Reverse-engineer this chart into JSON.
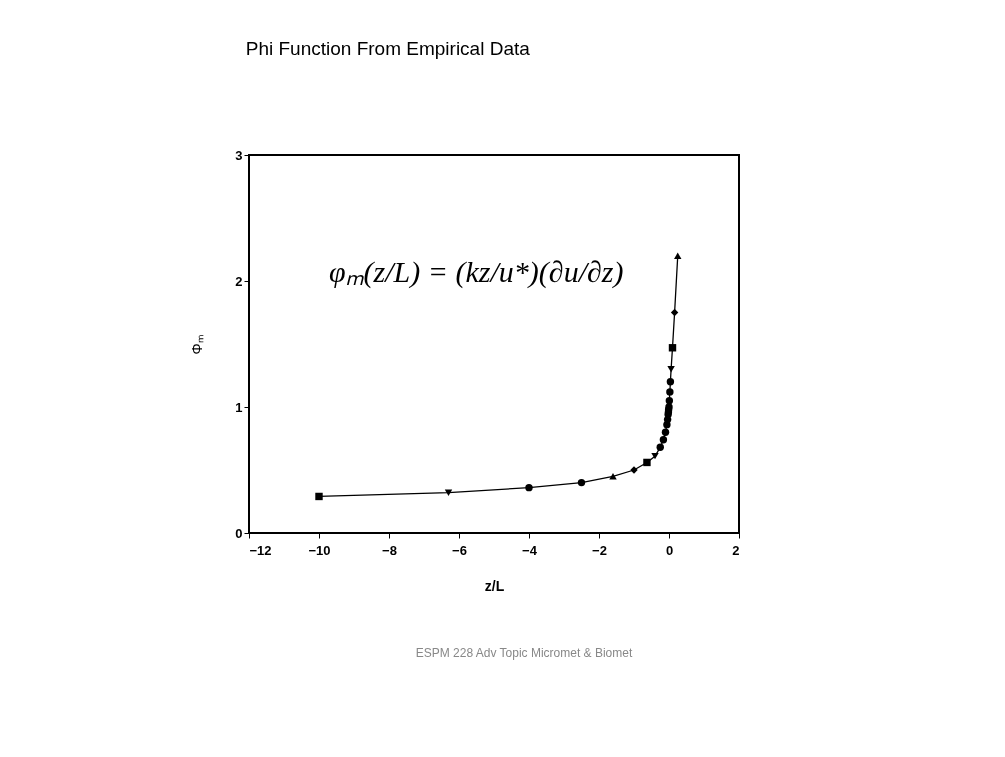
{
  "chart_data": {
    "type": "line",
    "title": "Phi Function From Empirical Data",
    "xlabel": "z/L",
    "ylabel": "Φₘ",
    "xlim": [
      -12,
      2
    ],
    "xticks": [
      -12,
      -10,
      -8,
      -6,
      -4,
      -2,
      0,
      2
    ],
    "ylim": [
      0,
      3
    ],
    "yticks": [
      0,
      1,
      2,
      3
    ],
    "grid": false,
    "annotations": [
      "φₘ(z/L) = (kz/u*)(∂u/∂z)",
      "ESPM 228 Adv Topic Micromet & Biomet"
    ],
    "series": [
      {
        "type": "line",
        "color": "#000000",
        "marker": "none",
        "line_style": "solid",
        "x": [
          -10,
          -6.3,
          -4,
          -2.5,
          -1.6,
          -1.0,
          -0.63,
          -0.4,
          -0.25,
          -0.16,
          -0.1,
          -0.06,
          -0.04,
          -0.025,
          -0.016,
          -0.01,
          0,
          0.01,
          0.025,
          0.04,
          0.06,
          0.1,
          0.16,
          0.25
        ],
        "values": [
          0.29,
          0.32,
          0.36,
          0.4,
          0.45,
          0.5,
          0.56,
          0.61,
          0.68,
          0.74,
          0.8,
          0.86,
          0.9,
          0.94,
          0.96,
          0.98,
          1.0,
          1.05,
          1.12,
          1.2,
          1.3,
          1.47,
          1.75,
          2.2
        ]
      },
      {
        "type": "scatter",
        "color": "#000000",
        "marker": "square",
        "x": [
          -10,
          -0.63,
          0.1
        ],
        "values": [
          0.29,
          0.56,
          1.47
        ]
      },
      {
        "type": "scatter",
        "color": "#000000",
        "marker": "triangle-down",
        "x": [
          -6.3,
          -0.4,
          0.06
        ],
        "values": [
          0.32,
          0.61,
          1.3
        ]
      },
      {
        "type": "scatter",
        "color": "#000000",
        "marker": "circle",
        "x": [
          -4,
          -2.5,
          -0.25,
          -0.16,
          -0.1,
          -0.06,
          -0.04,
          -0.025,
          -0.016,
          -0.01,
          0,
          0.01,
          0.025,
          0.04
        ],
        "values": [
          0.36,
          0.4,
          0.68,
          0.74,
          0.8,
          0.86,
          0.9,
          0.94,
          0.96,
          0.98,
          1.0,
          1.05,
          1.12,
          1.2
        ]
      },
      {
        "type": "scatter",
        "color": "#000000",
        "marker": "triangle",
        "x": [
          -1.6,
          0.25
        ],
        "values": [
          0.45,
          2.2
        ]
      },
      {
        "type": "scatter",
        "color": "#000000",
        "marker": "diamond",
        "x": [
          -1.0,
          0.16
        ],
        "values": [
          0.5,
          1.75
        ]
      }
    ]
  }
}
